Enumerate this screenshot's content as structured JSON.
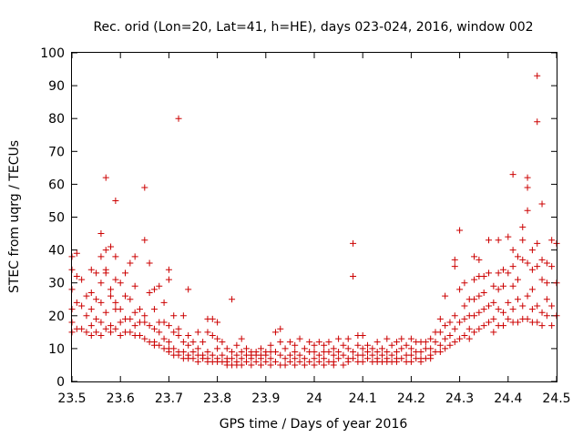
{
  "chart_data": {
    "type": "scatter",
    "title": "Rec. orid (Lon=20, Lat=41, h=HE), days 023-024, 2016, window 002",
    "xlabel": "GPS time / Days of year 2016",
    "ylabel": "STEC from uqrg / TECUs",
    "xlim": [
      23.5,
      24.5
    ],
    "ylim": [
      0,
      100
    ],
    "x_ticks": [
      "23.5",
      "23.6",
      "23.7",
      "23.8",
      "23.9",
      "24",
      "24.1",
      "24.2",
      "24.3",
      "24.4",
      "24.5"
    ],
    "y_ticks": [
      "0",
      "10",
      "20",
      "30",
      "40",
      "50",
      "60",
      "70",
      "80",
      "90",
      "100"
    ],
    "grid": false,
    "legend": "none",
    "marker": "plus",
    "color": "#cc0000",
    "points": [
      [
        23.5,
        38
      ],
      [
        23.5,
        34
      ],
      [
        23.5,
        28
      ],
      [
        23.5,
        22
      ],
      [
        23.5,
        18
      ],
      [
        23.5,
        15
      ],
      [
        23.51,
        39
      ],
      [
        23.51,
        32
      ],
      [
        23.51,
        24
      ],
      [
        23.51,
        16
      ],
      [
        23.52,
        31
      ],
      [
        23.52,
        23
      ],
      [
        23.52,
        16
      ],
      [
        23.53,
        26
      ],
      [
        23.53,
        20
      ],
      [
        23.53,
        15
      ],
      [
        23.54,
        34
      ],
      [
        23.54,
        27
      ],
      [
        23.54,
        22
      ],
      [
        23.54,
        17
      ],
      [
        23.54,
        14
      ],
      [
        23.55,
        33
      ],
      [
        23.55,
        25
      ],
      [
        23.55,
        19
      ],
      [
        23.55,
        15
      ],
      [
        23.56,
        45
      ],
      [
        23.56,
        38
      ],
      [
        23.56,
        30
      ],
      [
        23.56,
        24
      ],
      [
        23.56,
        18
      ],
      [
        23.56,
        14
      ],
      [
        23.57,
        62
      ],
      [
        23.57,
        40
      ],
      [
        23.57,
        33
      ],
      [
        23.57,
        34
      ],
      [
        23.57,
        21
      ],
      [
        23.57,
        16
      ],
      [
        23.58,
        41
      ],
      [
        23.58,
        28
      ],
      [
        23.58,
        26
      ],
      [
        23.58,
        17
      ],
      [
        23.58,
        15
      ],
      [
        23.59,
        55
      ],
      [
        23.59,
        38
      ],
      [
        23.59,
        31
      ],
      [
        23.59,
        24
      ],
      [
        23.59,
        22
      ],
      [
        23.59,
        16
      ],
      [
        23.6,
        30
      ],
      [
        23.6,
        22
      ],
      [
        23.6,
        18
      ],
      [
        23.6,
        14
      ],
      [
        23.61,
        33
      ],
      [
        23.61,
        26
      ],
      [
        23.61,
        19
      ],
      [
        23.61,
        15
      ],
      [
        23.62,
        36
      ],
      [
        23.62,
        25
      ],
      [
        23.62,
        19
      ],
      [
        23.62,
        15
      ],
      [
        23.63,
        38
      ],
      [
        23.63,
        29
      ],
      [
        23.63,
        21
      ],
      [
        23.63,
        17
      ],
      [
        23.63,
        14
      ],
      [
        23.64,
        22
      ],
      [
        23.64,
        18
      ],
      [
        23.64,
        14
      ],
      [
        23.65,
        59
      ],
      [
        23.65,
        43
      ],
      [
        23.65,
        20
      ],
      [
        23.65,
        18
      ],
      [
        23.65,
        13
      ],
      [
        23.66,
        36
      ],
      [
        23.66,
        27
      ],
      [
        23.66,
        17
      ],
      [
        23.66,
        12
      ],
      [
        23.67,
        28
      ],
      [
        23.67,
        22
      ],
      [
        23.67,
        16
      ],
      [
        23.67,
        12
      ],
      [
        23.67,
        11
      ],
      [
        23.68,
        29
      ],
      [
        23.68,
        18
      ],
      [
        23.68,
        15
      ],
      [
        23.68,
        11
      ],
      [
        23.69,
        24
      ],
      [
        23.69,
        18
      ],
      [
        23.69,
        13
      ],
      [
        23.69,
        10
      ],
      [
        23.7,
        34
      ],
      [
        23.7,
        31
      ],
      [
        23.7,
        17
      ],
      [
        23.7,
        12
      ],
      [
        23.7,
        10
      ],
      [
        23.7,
        9
      ],
      [
        23.71,
        20
      ],
      [
        23.71,
        15
      ],
      [
        23.71,
        10
      ],
      [
        23.71,
        8
      ],
      [
        23.72,
        80
      ],
      [
        23.72,
        16
      ],
      [
        23.72,
        14
      ],
      [
        23.72,
        9
      ],
      [
        23.72,
        8
      ],
      [
        23.73,
        20
      ],
      [
        23.73,
        12
      ],
      [
        23.73,
        9
      ],
      [
        23.73,
        7
      ],
      [
        23.74,
        28
      ],
      [
        23.74,
        14
      ],
      [
        23.74,
        11
      ],
      [
        23.74,
        8
      ],
      [
        23.74,
        7
      ],
      [
        23.75,
        12
      ],
      [
        23.75,
        9
      ],
      [
        23.75,
        7
      ],
      [
        23.76,
        15
      ],
      [
        23.76,
        10
      ],
      [
        23.76,
        8
      ],
      [
        23.76,
        6
      ],
      [
        23.77,
        12
      ],
      [
        23.77,
        8
      ],
      [
        23.77,
        7
      ],
      [
        23.78,
        19
      ],
      [
        23.78,
        15
      ],
      [
        23.78,
        9
      ],
      [
        23.78,
        7
      ],
      [
        23.78,
        6
      ],
      [
        23.79,
        19
      ],
      [
        23.79,
        14
      ],
      [
        23.79,
        8
      ],
      [
        23.79,
        6
      ],
      [
        23.8,
        18
      ],
      [
        23.8,
        13
      ],
      [
        23.8,
        10
      ],
      [
        23.8,
        7
      ],
      [
        23.8,
        6
      ],
      [
        23.81,
        12
      ],
      [
        23.81,
        8
      ],
      [
        23.81,
        6
      ],
      [
        23.82,
        10
      ],
      [
        23.82,
        7
      ],
      [
        23.82,
        6
      ],
      [
        23.82,
        5
      ],
      [
        23.83,
        25
      ],
      [
        23.83,
        9
      ],
      [
        23.83,
        7
      ],
      [
        23.83,
        5
      ],
      [
        23.84,
        11
      ],
      [
        23.84,
        8
      ],
      [
        23.84,
        6
      ],
      [
        23.84,
        5
      ],
      [
        23.85,
        13
      ],
      [
        23.85,
        9
      ],
      [
        23.85,
        7
      ],
      [
        23.85,
        5
      ],
      [
        23.86,
        10
      ],
      [
        23.86,
        8
      ],
      [
        23.86,
        6
      ],
      [
        23.87,
        9
      ],
      [
        23.87,
        8
      ],
      [
        23.87,
        7
      ],
      [
        23.87,
        5
      ],
      [
        23.88,
        9
      ],
      [
        23.88,
        8
      ],
      [
        23.88,
        6
      ],
      [
        23.89,
        10
      ],
      [
        23.89,
        8
      ],
      [
        23.89,
        7
      ],
      [
        23.89,
        5
      ],
      [
        23.9,
        9
      ],
      [
        23.9,
        8
      ],
      [
        23.9,
        6
      ],
      [
        23.91,
        11
      ],
      [
        23.91,
        9
      ],
      [
        23.91,
        7
      ],
      [
        23.91,
        5
      ],
      [
        23.92,
        15
      ],
      [
        23.92,
        9
      ],
      [
        23.92,
        6
      ],
      [
        23.93,
        16
      ],
      [
        23.93,
        12
      ],
      [
        23.93,
        8
      ],
      [
        23.93,
        5
      ],
      [
        23.94,
        10
      ],
      [
        23.94,
        7
      ],
      [
        23.94,
        5
      ],
      [
        23.95,
        12
      ],
      [
        23.95,
        8
      ],
      [
        23.95,
        6
      ],
      [
        23.96,
        11
      ],
      [
        23.96,
        9
      ],
      [
        23.96,
        7
      ],
      [
        23.96,
        5
      ],
      [
        23.97,
        13
      ],
      [
        23.97,
        8
      ],
      [
        23.97,
        6
      ],
      [
        23.98,
        10
      ],
      [
        23.98,
        7
      ],
      [
        23.98,
        5
      ],
      [
        23.99,
        12
      ],
      [
        23.99,
        9
      ],
      [
        23.99,
        6
      ],
      [
        24.0,
        11
      ],
      [
        24.0,
        9
      ],
      [
        24.0,
        7
      ],
      [
        24.0,
        5
      ],
      [
        24.01,
        12
      ],
      [
        24.01,
        8
      ],
      [
        24.01,
        6
      ],
      [
        24.02,
        11
      ],
      [
        24.02,
        9
      ],
      [
        24.02,
        7
      ],
      [
        24.02,
        5
      ],
      [
        24.03,
        12
      ],
      [
        24.03,
        9
      ],
      [
        24.03,
        6
      ],
      [
        24.04,
        10
      ],
      [
        24.04,
        8
      ],
      [
        24.04,
        6
      ],
      [
        24.04,
        5
      ],
      [
        24.05,
        13
      ],
      [
        24.05,
        9
      ],
      [
        24.05,
        7
      ],
      [
        24.06,
        11
      ],
      [
        24.06,
        8
      ],
      [
        24.06,
        5
      ],
      [
        24.07,
        13
      ],
      [
        24.07,
        10
      ],
      [
        24.07,
        7
      ],
      [
        24.07,
        6
      ],
      [
        24.08,
        42
      ],
      [
        24.08,
        32
      ],
      [
        24.08,
        9
      ],
      [
        24.08,
        7
      ],
      [
        24.09,
        14
      ],
      [
        24.09,
        11
      ],
      [
        24.09,
        8
      ],
      [
        24.09,
        6
      ],
      [
        24.1,
        14
      ],
      [
        24.1,
        10
      ],
      [
        24.1,
        8
      ],
      [
        24.1,
        6
      ],
      [
        24.11,
        11
      ],
      [
        24.11,
        9
      ],
      [
        24.11,
        7
      ],
      [
        24.12,
        10
      ],
      [
        24.12,
        8
      ],
      [
        24.12,
        6
      ],
      [
        24.13,
        12
      ],
      [
        24.13,
        9
      ],
      [
        24.13,
        7
      ],
      [
        24.13,
        6
      ],
      [
        24.14,
        10
      ],
      [
        24.14,
        8
      ],
      [
        24.14,
        6
      ],
      [
        24.15,
        13
      ],
      [
        24.15,
        9
      ],
      [
        24.15,
        7
      ],
      [
        24.15,
        6
      ],
      [
        24.16,
        11
      ],
      [
        24.16,
        8
      ],
      [
        24.16,
        6
      ],
      [
        24.17,
        12
      ],
      [
        24.17,
        9
      ],
      [
        24.17,
        7
      ],
      [
        24.17,
        6
      ],
      [
        24.18,
        13
      ],
      [
        24.18,
        10
      ],
      [
        24.18,
        7
      ],
      [
        24.19,
        11
      ],
      [
        24.19,
        8
      ],
      [
        24.19,
        6
      ],
      [
        24.2,
        13
      ],
      [
        24.2,
        10
      ],
      [
        24.2,
        8
      ],
      [
        24.2,
        6
      ],
      [
        24.21,
        12
      ],
      [
        24.21,
        9
      ],
      [
        24.21,
        7
      ],
      [
        24.22,
        12
      ],
      [
        24.22,
        9
      ],
      [
        24.22,
        7
      ],
      [
        24.22,
        6
      ],
      [
        24.23,
        12
      ],
      [
        24.23,
        10
      ],
      [
        24.23,
        7
      ],
      [
        24.24,
        13
      ],
      [
        24.24,
        10
      ],
      [
        24.24,
        8
      ],
      [
        24.24,
        7
      ],
      [
        24.25,
        15
      ],
      [
        24.25,
        12
      ],
      [
        24.25,
        9
      ],
      [
        24.26,
        19
      ],
      [
        24.26,
        15
      ],
      [
        24.26,
        11
      ],
      [
        24.26,
        9
      ],
      [
        24.27,
        26
      ],
      [
        24.27,
        17
      ],
      [
        24.27,
        13
      ],
      [
        24.27,
        10
      ],
      [
        24.28,
        18
      ],
      [
        24.28,
        14
      ],
      [
        24.28,
        11
      ],
      [
        24.29,
        37
      ],
      [
        24.29,
        35
      ],
      [
        24.29,
        20
      ],
      [
        24.29,
        16
      ],
      [
        24.29,
        12
      ],
      [
        24.3,
        46
      ],
      [
        24.3,
        28
      ],
      [
        24.3,
        18
      ],
      [
        24.3,
        13
      ],
      [
        24.31,
        30
      ],
      [
        24.31,
        23
      ],
      [
        24.31,
        19
      ],
      [
        24.31,
        14
      ],
      [
        24.32,
        25
      ],
      [
        24.32,
        20
      ],
      [
        24.32,
        16
      ],
      [
        24.32,
        13
      ],
      [
        24.33,
        38
      ],
      [
        24.33,
        31
      ],
      [
        24.33,
        25
      ],
      [
        24.33,
        20
      ],
      [
        24.33,
        15
      ],
      [
        24.34,
        37
      ],
      [
        24.34,
        32
      ],
      [
        24.34,
        26
      ],
      [
        24.34,
        21
      ],
      [
        24.34,
        16
      ],
      [
        24.35,
        32
      ],
      [
        24.35,
        27
      ],
      [
        24.35,
        22
      ],
      [
        24.35,
        17
      ],
      [
        24.36,
        43
      ],
      [
        24.36,
        33
      ],
      [
        24.36,
        23
      ],
      [
        24.36,
        18
      ],
      [
        24.37,
        29
      ],
      [
        24.37,
        24
      ],
      [
        24.37,
        19
      ],
      [
        24.37,
        15
      ],
      [
        24.38,
        43
      ],
      [
        24.38,
        33
      ],
      [
        24.38,
        28
      ],
      [
        24.38,
        22
      ],
      [
        24.38,
        17
      ],
      [
        24.39,
        34
      ],
      [
        24.39,
        29
      ],
      [
        24.39,
        21
      ],
      [
        24.39,
        17
      ],
      [
        24.4,
        44
      ],
      [
        24.4,
        33
      ],
      [
        24.4,
        24
      ],
      [
        24.4,
        19
      ],
      [
        24.41,
        63
      ],
      [
        24.41,
        40
      ],
      [
        24.41,
        35
      ],
      [
        24.41,
        29
      ],
      [
        24.41,
        22
      ],
      [
        24.41,
        18
      ],
      [
        24.42,
        38
      ],
      [
        24.42,
        31
      ],
      [
        24.42,
        25
      ],
      [
        24.42,
        18
      ],
      [
        24.43,
        47
      ],
      [
        24.43,
        43
      ],
      [
        24.43,
        37
      ],
      [
        24.43,
        23
      ],
      [
        24.43,
        19
      ],
      [
        24.44,
        62
      ],
      [
        24.44,
        59
      ],
      [
        24.44,
        52
      ],
      [
        24.44,
        36
      ],
      [
        24.44,
        26
      ],
      [
        24.44,
        19
      ],
      [
        24.45,
        40
      ],
      [
        24.45,
        34
      ],
      [
        24.45,
        28
      ],
      [
        24.45,
        22
      ],
      [
        24.45,
        18
      ],
      [
        24.46,
        93
      ],
      [
        24.46,
        79
      ],
      [
        24.46,
        42
      ],
      [
        24.46,
        35
      ],
      [
        24.46,
        23
      ],
      [
        24.46,
        18
      ],
      [
        24.47,
        54
      ],
      [
        24.47,
        37
      ],
      [
        24.47,
        31
      ],
      [
        24.47,
        21
      ],
      [
        24.47,
        17
      ],
      [
        24.48,
        36
      ],
      [
        24.48,
        30
      ],
      [
        24.48,
        25
      ],
      [
        24.48,
        20
      ],
      [
        24.49,
        43
      ],
      [
        24.49,
        35
      ],
      [
        24.49,
        23
      ],
      [
        24.49,
        17
      ],
      [
        24.5,
        42
      ],
      [
        24.5,
        30
      ],
      [
        24.5,
        20
      ]
    ]
  }
}
